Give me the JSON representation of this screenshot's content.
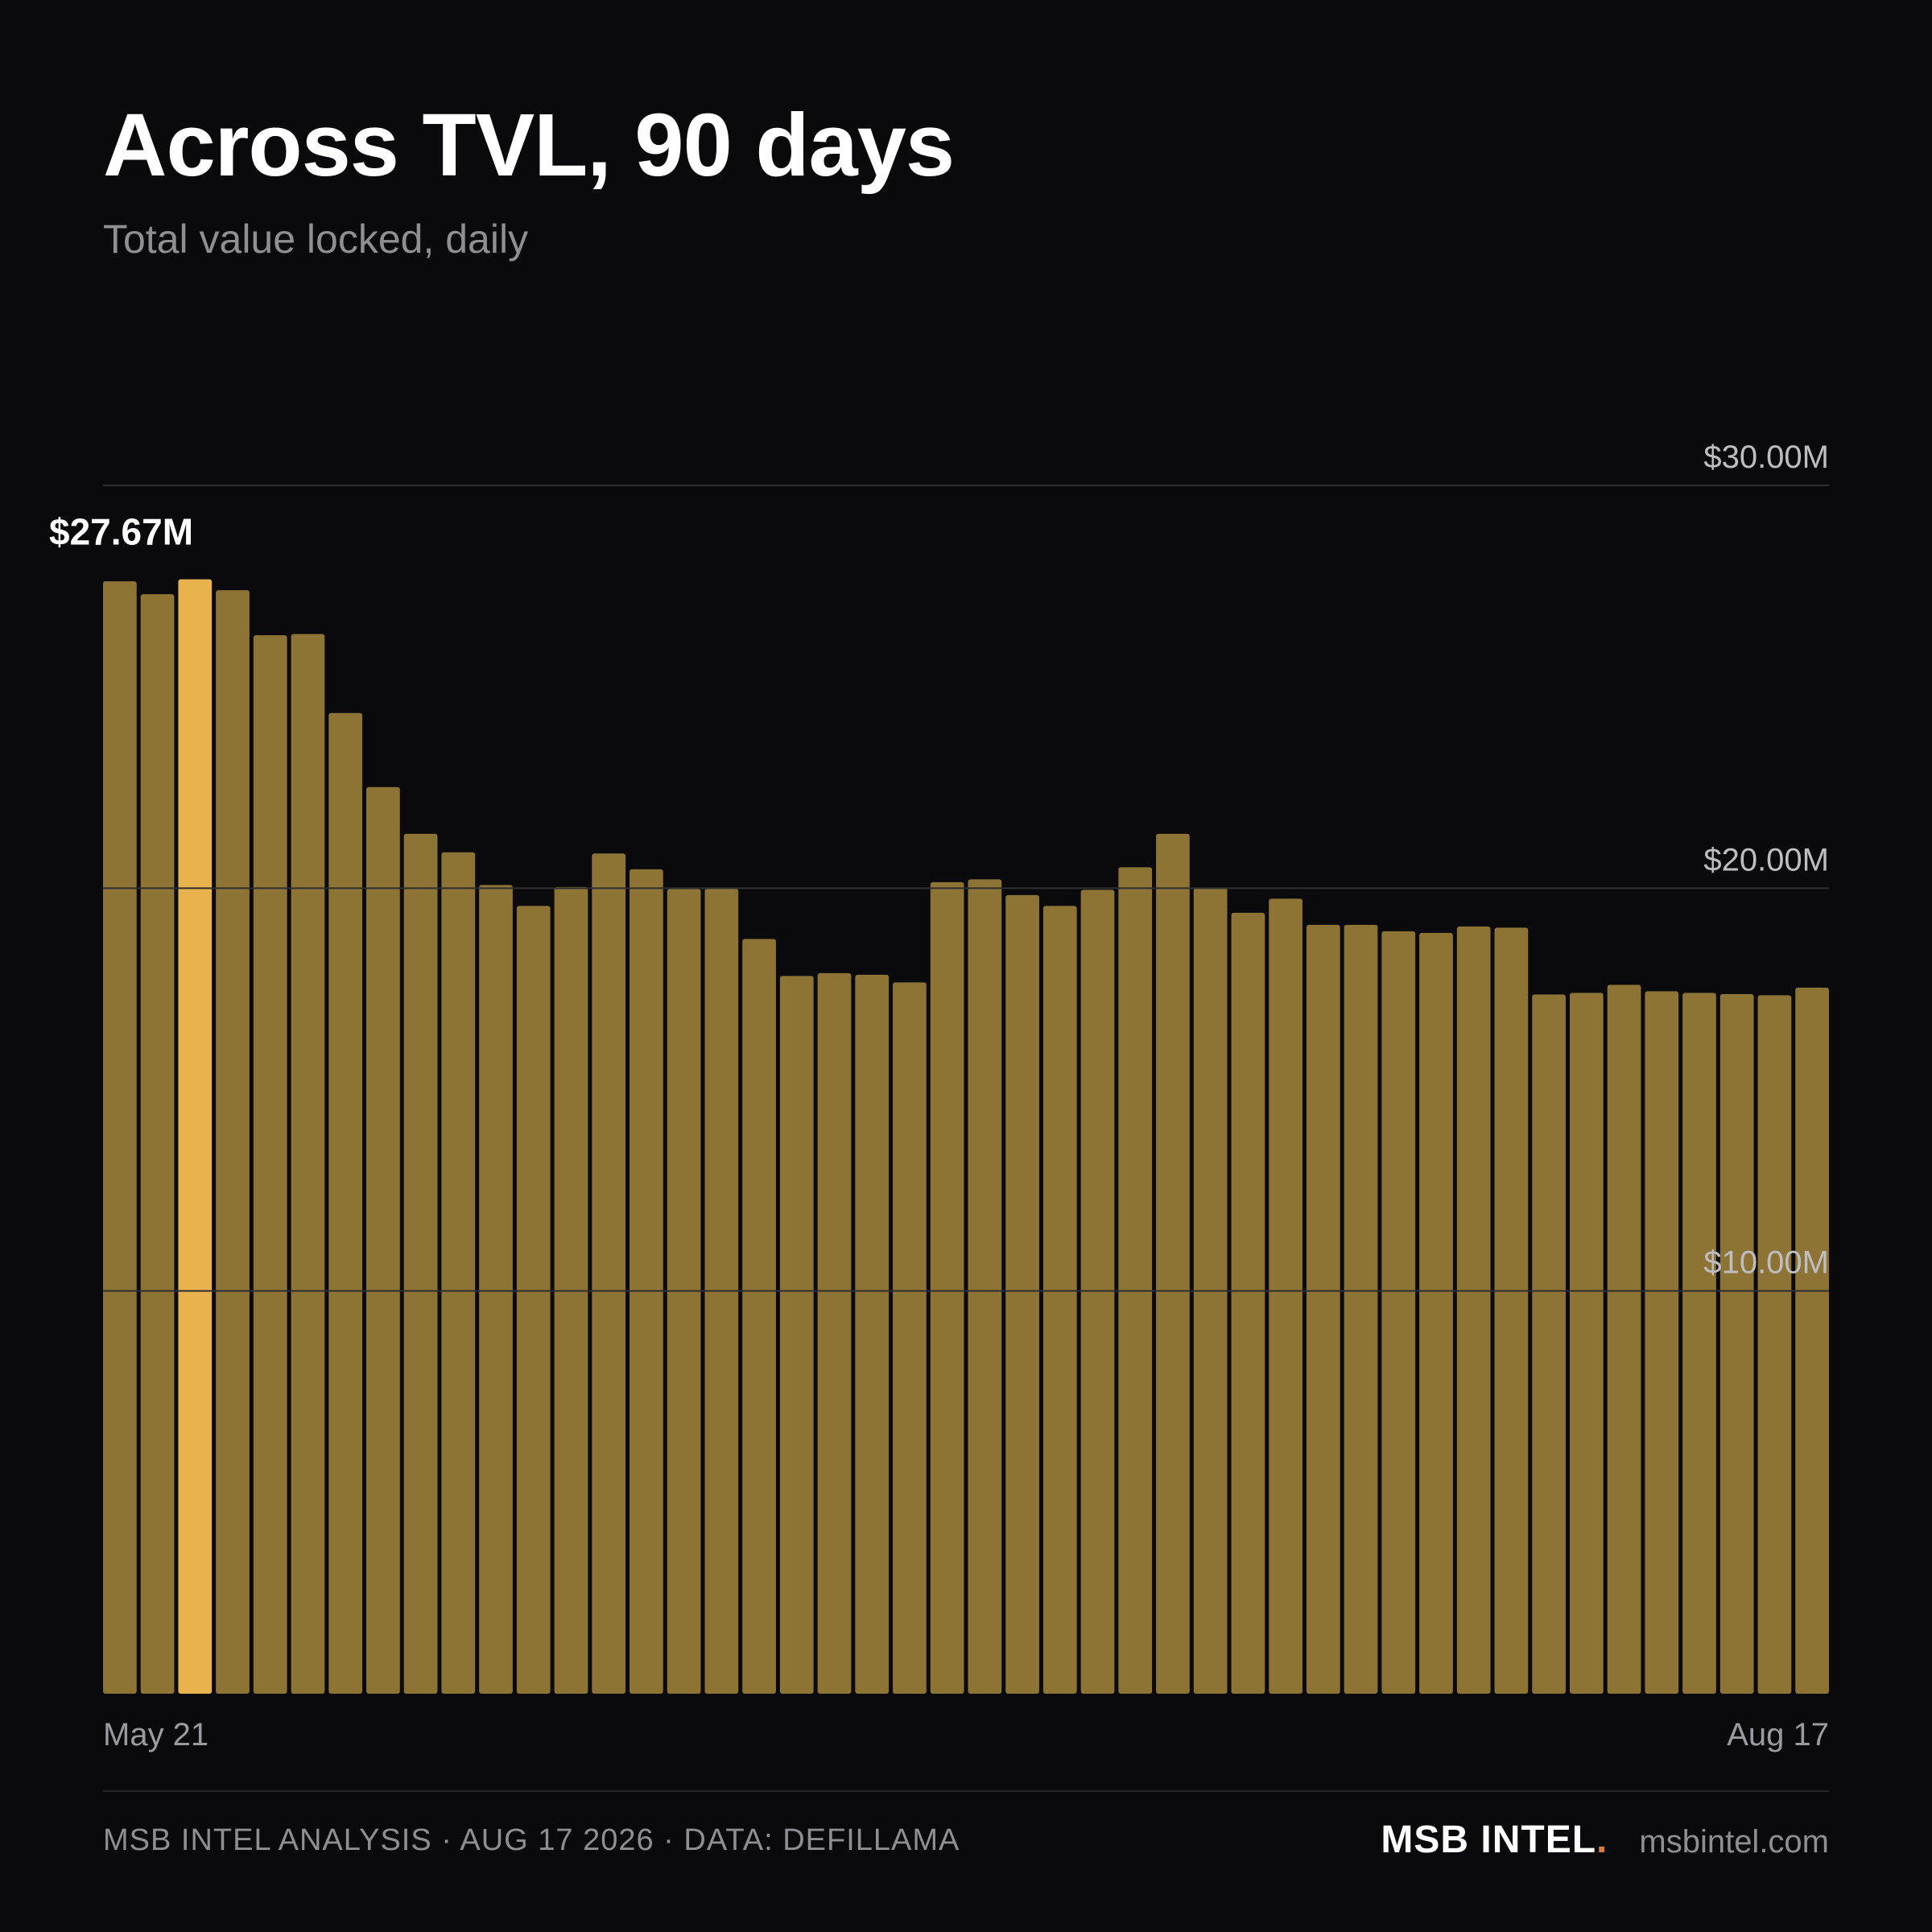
{
  "header": {
    "title": "Across TVL, 90 days",
    "subtitle": "Total value locked, daily"
  },
  "chart_data": {
    "type": "bar",
    "title": "Across TVL, 90 days",
    "subtitle": "Total value locked, daily",
    "x_start_label": "May 21",
    "x_end_label": "Aug 17",
    "ylim": [
      0,
      30
    ],
    "y_ticks": [
      {
        "value": 10,
        "label": "$10.00M"
      },
      {
        "value": 20,
        "label": "$20.00M"
      },
      {
        "value": 30,
        "label": "$30.00M"
      }
    ],
    "grid": true,
    "unit": "$M",
    "values": [
      27.62,
      27.3,
      27.67,
      27.4,
      26.28,
      26.31,
      24.35,
      22.51,
      21.35,
      20.89,
      20.08,
      19.56,
      20.03,
      20.86,
      20.47,
      19.98,
      19.99,
      18.74,
      17.82,
      17.89,
      17.85,
      17.66,
      20.15,
      20.22,
      19.83,
      19.56,
      19.96,
      20.52,
      21.35,
      20.01,
      19.39,
      19.74,
      19.09,
      19.09,
      18.93,
      18.89,
      19.05,
      19.02,
      17.36,
      17.4,
      17.6,
      17.44,
      17.4,
      17.37,
      17.34,
      17.53
    ],
    "highlight_index": 2,
    "highlight_label": "$27.67M",
    "bar_color": "#8e7434",
    "highlight_color": "#e8b24c",
    "grid_color": "#2e2e32",
    "tick_label_color": "#bdbdc2"
  },
  "footer": {
    "source": "MSB INTEL ANALYSIS · AUG 17 2026 · DATA: DEFILLAMA",
    "brand": "MSB INTEL",
    "brand_dot": ".",
    "site": "msbintel.com"
  }
}
